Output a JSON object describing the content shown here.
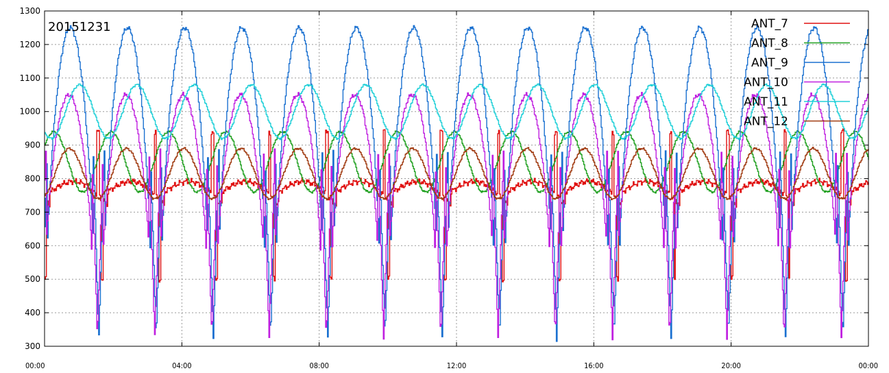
{
  "chart_data": {
    "type": "line",
    "title": "",
    "annotation": "20151231",
    "xlabel": "",
    "ylabel": "",
    "ylim": [
      300,
      1300
    ],
    "yticks": [
      300,
      400,
      500,
      600,
      700,
      800,
      900,
      1000,
      1100,
      1200,
      1300
    ],
    "xlim_hours": [
      0,
      24
    ],
    "xticks": [
      {
        "h": 0,
        "label": "00:00"
      },
      {
        "h": 4,
        "label": "04:00"
      },
      {
        "h": 8,
        "label": "08:00"
      },
      {
        "h": 12,
        "label": "12:00"
      },
      {
        "h": 16,
        "label": "16:00"
      },
      {
        "h": 20,
        "label": "20:00"
      },
      {
        "h": 24,
        "label": "00:00"
      }
    ],
    "grid": true,
    "legend_position": "top-right",
    "cycle_hours": 1.667,
    "cycle_count": 14.4,
    "series": [
      {
        "name": "ANT_7",
        "color": "#e01010",
        "baseline": 760,
        "peak": 810,
        "trough": 500,
        "min": 500,
        "max": 1000,
        "pattern": "low-with-spikes"
      },
      {
        "name": "ANT_8",
        "color": "#20a020",
        "baseline": 800,
        "peak": 940,
        "trough": 760,
        "min": 760,
        "max": 940,
        "pattern": "smooth"
      },
      {
        "name": "ANT_9",
        "color": "#1a70d0",
        "baseline": 1000,
        "peak": 1250,
        "trough": 320,
        "min": 320,
        "max": 1250,
        "pattern": "high-with-dips"
      },
      {
        "name": "ANT_10",
        "color": "#c020e0",
        "baseline": 950,
        "peak": 1050,
        "trough": 320,
        "min": 320,
        "max": 1050,
        "pattern": "high-with-dips"
      },
      {
        "name": "ANT_11",
        "color": "#20d0d8",
        "baseline": 940,
        "peak": 1080,
        "trough": 920,
        "min": 920,
        "max": 1080,
        "pattern": "smooth"
      },
      {
        "name": "ANT_12",
        "color": "#a03a10",
        "baseline": 800,
        "peak": 890,
        "trough": 740,
        "min": 740,
        "max": 890,
        "pattern": "smooth"
      }
    ]
  }
}
